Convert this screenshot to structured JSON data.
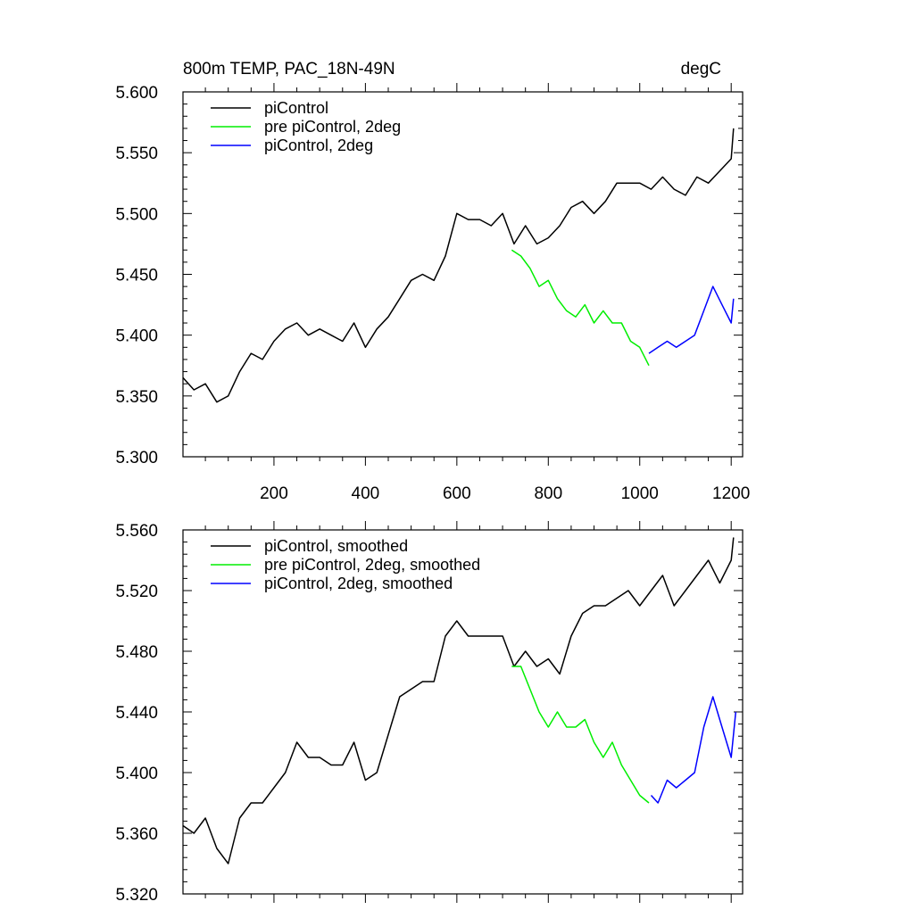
{
  "figure": {
    "title_left": "800m TEMP, PAC_18N-49N",
    "title_right": "degC"
  },
  "colors": {
    "piControl": "#000000",
    "pre_piControl_2deg": "#00ee00",
    "piControl_2deg": "#0000ff",
    "axis": "#000000"
  },
  "chart_data": [
    {
      "type": "line",
      "panel": "top",
      "title": "800m TEMP, PAC_18N-49N",
      "units": "degC",
      "xlim": [
        1,
        1225
      ],
      "ylim": [
        5.3,
        5.6
      ],
      "x_ticks": [
        200,
        400,
        600,
        800,
        1000,
        1200
      ],
      "x_tick_labels": [
        "200",
        "400",
        "600",
        "800",
        "1000",
        "1200"
      ],
      "y_ticks": [
        5.3,
        5.35,
        5.4,
        5.45,
        5.5,
        5.55,
        5.6
      ],
      "y_tick_labels": [
        "5.300",
        "5.350",
        "5.400",
        "5.450",
        "5.500",
        "5.550",
        "5.600"
      ],
      "legend": [
        "piControl",
        "pre piControl, 2deg",
        "piControl, 2deg"
      ],
      "legend_position": "top-left",
      "series": [
        {
          "name": "piControl",
          "color": "#000000",
          "x": [
            1,
            25,
            50,
            75,
            100,
            125,
            150,
            175,
            200,
            225,
            250,
            275,
            300,
            325,
            350,
            375,
            400,
            425,
            450,
            475,
            500,
            525,
            550,
            575,
            600,
            625,
            650,
            675,
            700,
            725,
            750,
            775,
            800,
            825,
            850,
            875,
            900,
            925,
            950,
            975,
            1000,
            1025,
            1050,
            1075,
            1100,
            1125,
            1150,
            1175,
            1200,
            1205
          ],
          "y": [
            5.365,
            5.355,
            5.36,
            5.345,
            5.35,
            5.37,
            5.385,
            5.38,
            5.395,
            5.405,
            5.41,
            5.4,
            5.405,
            5.4,
            5.395,
            5.41,
            5.39,
            5.405,
            5.415,
            5.43,
            5.445,
            5.45,
            5.445,
            5.465,
            5.5,
            5.495,
            5.495,
            5.49,
            5.5,
            5.475,
            5.49,
            5.475,
            5.48,
            5.49,
            5.505,
            5.51,
            5.5,
            5.51,
            5.525,
            5.525,
            5.525,
            5.52,
            5.53,
            5.52,
            5.515,
            5.53,
            5.525,
            5.535,
            5.545,
            5.57
          ]
        },
        {
          "name": "pre piControl, 2deg",
          "color": "#00ee00",
          "x": [
            720,
            740,
            760,
            780,
            800,
            820,
            840,
            860,
            880,
            900,
            920,
            940,
            960,
            980,
            1000,
            1020
          ],
          "y": [
            5.47,
            5.465,
            5.455,
            5.44,
            5.445,
            5.43,
            5.42,
            5.415,
            5.425,
            5.41,
            5.42,
            5.41,
            5.41,
            5.395,
            5.39,
            5.375
          ]
        },
        {
          "name": "piControl, 2deg",
          "color": "#0000ff",
          "x": [
            1020,
            1040,
            1060,
            1080,
            1100,
            1120,
            1140,
            1160,
            1180,
            1200,
            1205
          ],
          "y": [
            5.385,
            5.39,
            5.395,
            5.39,
            5.395,
            5.4,
            5.42,
            5.44,
            5.425,
            5.41,
            5.43
          ]
        }
      ]
    },
    {
      "type": "line",
      "panel": "bottom",
      "xlim": [
        1,
        1225
      ],
      "ylim": [
        5.32,
        5.56
      ],
      "x_ticks": [
        200,
        400,
        600,
        800,
        1000,
        1200
      ],
      "y_ticks": [
        5.32,
        5.36,
        5.4,
        5.44,
        5.48,
        5.52,
        5.56
      ],
      "y_tick_labels": [
        "5.320",
        "5.360",
        "5.400",
        "5.440",
        "5.480",
        "5.520",
        "5.560"
      ],
      "legend": [
        "piControl, smoothed",
        "pre piControl, 2deg, smoothed",
        "piControl, 2deg, smoothed"
      ],
      "legend_position": "top-left",
      "series": [
        {
          "name": "piControl, smoothed",
          "color": "#000000",
          "x": [
            1,
            25,
            50,
            75,
            100,
            125,
            150,
            175,
            200,
            225,
            250,
            275,
            300,
            325,
            350,
            375,
            400,
            425,
            450,
            475,
            500,
            525,
            550,
            575,
            600,
            625,
            650,
            675,
            700,
            725,
            750,
            775,
            800,
            825,
            850,
            875,
            900,
            925,
            950,
            975,
            1000,
            1025,
            1050,
            1075,
            1100,
            1125,
            1150,
            1175,
            1200,
            1205
          ],
          "y": [
            5.365,
            5.36,
            5.37,
            5.35,
            5.34,
            5.37,
            5.38,
            5.38,
            5.39,
            5.4,
            5.42,
            5.41,
            5.41,
            5.405,
            5.405,
            5.42,
            5.395,
            5.4,
            5.425,
            5.45,
            5.455,
            5.46,
            5.46,
            5.49,
            5.5,
            5.49,
            5.49,
            5.49,
            5.49,
            5.47,
            5.48,
            5.47,
            5.475,
            5.465,
            5.49,
            5.505,
            5.51,
            5.51,
            5.515,
            5.52,
            5.51,
            5.52,
            5.53,
            5.51,
            5.52,
            5.53,
            5.54,
            5.525,
            5.54,
            5.555
          ]
        },
        {
          "name": "pre piControl, 2deg, smoothed",
          "color": "#00ee00",
          "x": [
            720,
            740,
            760,
            780,
            800,
            820,
            840,
            860,
            880,
            900,
            920,
            940,
            960,
            980,
            1000,
            1020
          ],
          "y": [
            5.47,
            5.47,
            5.455,
            5.44,
            5.43,
            5.44,
            5.43,
            5.43,
            5.435,
            5.42,
            5.41,
            5.42,
            5.405,
            5.395,
            5.385,
            5.38
          ]
        },
        {
          "name": "piControl, 2deg, smoothed",
          "color": "#0000ff",
          "x": [
            1025,
            1040,
            1060,
            1080,
            1100,
            1120,
            1140,
            1160,
            1180,
            1200,
            1210
          ],
          "y": [
            5.385,
            5.38,
            5.395,
            5.39,
            5.395,
            5.4,
            5.43,
            5.45,
            5.43,
            5.41,
            5.44
          ]
        }
      ]
    }
  ]
}
